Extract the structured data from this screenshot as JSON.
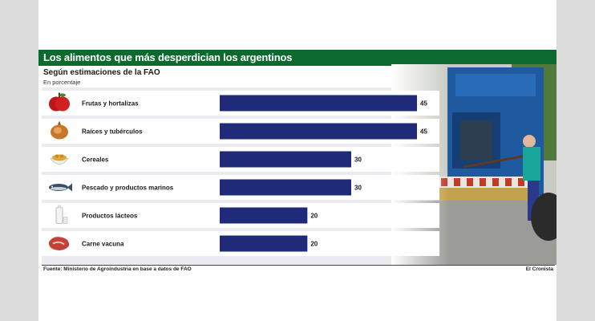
{
  "header": {
    "title": "Los alimentos que más desperdician los argentinos",
    "subtitle": "Según estimaciones de la FAO",
    "units": "En porcentaje"
  },
  "footer": {
    "source_prefix": "Fuente:",
    "source_text": "Ministerio de Agroindustria en base a datos de FAO",
    "credit": "El Cronista"
  },
  "colors": {
    "title_bar": "#0d6a2e",
    "bar": "#1f2a78",
    "panel": "#ebebf2"
  },
  "chart_data": {
    "type": "bar",
    "orientation": "horizontal",
    "categories": [
      "Frutas y hortalizas",
      "Raíces y tubérculos",
      "Cereales",
      "Pescado y productos marinos",
      "Productos lácteos",
      "Carne vacuna"
    ],
    "values": [
      45,
      45,
      30,
      30,
      20,
      20
    ],
    "value_labels": [
      "45",
      "45",
      "30",
      "30",
      "20",
      "20"
    ],
    "icons": [
      "apple-icon",
      "onion-icon",
      "cereal-bowl-icon",
      "fish-icon",
      "milk-bottle-icon",
      "meat-icon"
    ],
    "xlim": [
      0,
      45
    ],
    "grid": false,
    "legend": "none"
  }
}
